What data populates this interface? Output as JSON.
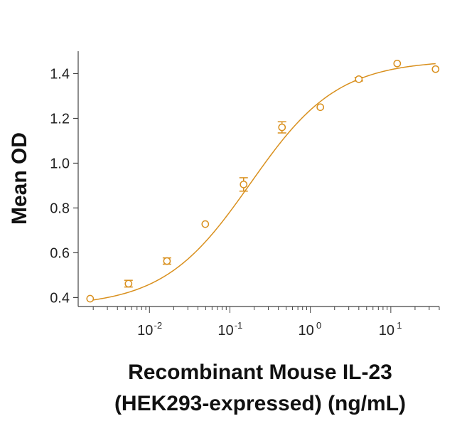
{
  "chart_data": {
    "type": "scatter",
    "xscale": "log",
    "xlim": [
      0.0013,
      40
    ],
    "ylim": [
      0.36,
      1.5
    ],
    "xlabel_line1": "Recombinant Mouse IL-23",
    "xlabel_line2": "(HEK293-expressed) (ng/mL)",
    "ylabel": "Mean OD",
    "yticks": [
      "0.4",
      "0.6",
      "0.8",
      "1.0",
      "1.2",
      "1.4"
    ],
    "ytick_values": [
      0.4,
      0.6,
      0.8,
      1.0,
      1.2,
      1.4
    ],
    "xtick_exponents": [
      "-2",
      "-1",
      "0",
      "1"
    ],
    "xtick_values": [
      0.01,
      0.1,
      1,
      10
    ],
    "color": "#D9901E",
    "grid": false,
    "series": [
      {
        "points": [
          {
            "x": 0.00183,
            "y": 0.395,
            "err": 0.0
          },
          {
            "x": 0.00549,
            "y": 0.462,
            "err": 0.015
          },
          {
            "x": 0.0165,
            "y": 0.563,
            "err": 0.014
          },
          {
            "x": 0.0494,
            "y": 0.728,
            "err": 0.0
          },
          {
            "x": 0.148,
            "y": 0.905,
            "err": 0.03
          },
          {
            "x": 0.444,
            "y": 1.16,
            "err": 0.025
          },
          {
            "x": 1.33,
            "y": 1.25,
            "err": 0.0
          },
          {
            "x": 4.0,
            "y": 1.375,
            "err": 0.008
          },
          {
            "x": 12.0,
            "y": 1.445,
            "err": 0.0
          },
          {
            "x": 36.0,
            "y": 1.42,
            "err": 0.0
          }
        ],
        "fit": {
          "bottom": 0.36,
          "top": 1.46,
          "ec50": 0.18,
          "hill": 0.8
        }
      }
    ]
  }
}
